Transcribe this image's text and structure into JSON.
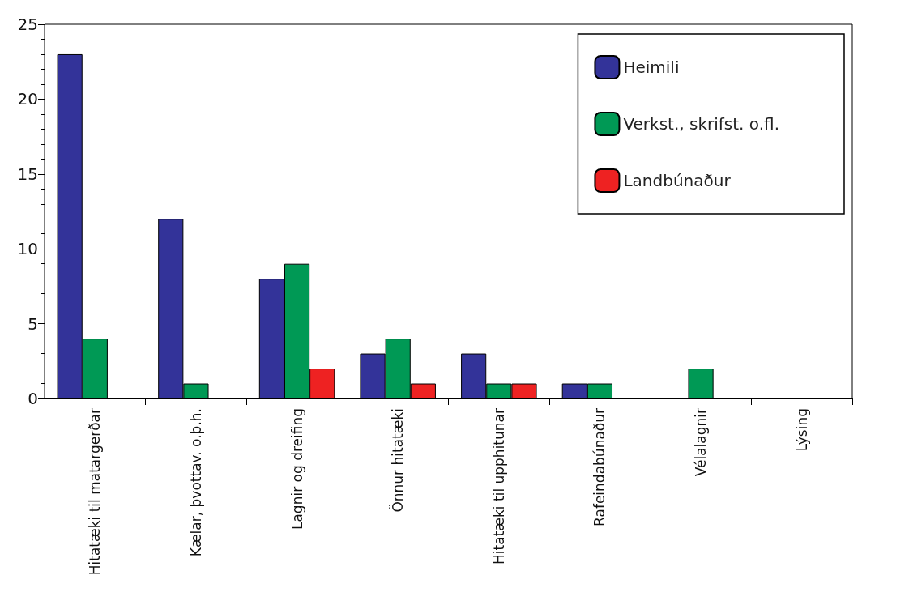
{
  "chart_data": {
    "type": "bar",
    "categories": [
      "Hitatæki til matargerðar",
      "Kælar, þvottav. o.þ.h.",
      "Lagnir og dreifing",
      "Önnur hitatæki",
      "Hitatæki til upphitunar",
      "Rafeindabúnaður",
      "Vélalagnir",
      "Lýsing"
    ],
    "series": [
      {
        "name": "Heimili",
        "color": "#333399",
        "values": [
          23,
          12,
          8,
          3,
          3,
          1,
          0,
          0
        ]
      },
      {
        "name": "Verkst., skrifst. o.fl.",
        "color": "#009955",
        "values": [
          4,
          1,
          9,
          4,
          1,
          1,
          2,
          0
        ]
      },
      {
        "name": "Landbúnaður",
        "color": "#ee2222",
        "values": [
          0,
          0,
          2,
          1,
          1,
          0,
          0,
          0
        ]
      }
    ],
    "ylim": [
      0,
      25
    ],
    "yticks": [
      0,
      5,
      10,
      15,
      20,
      25
    ],
    "grid": false,
    "legend": "top right"
  }
}
